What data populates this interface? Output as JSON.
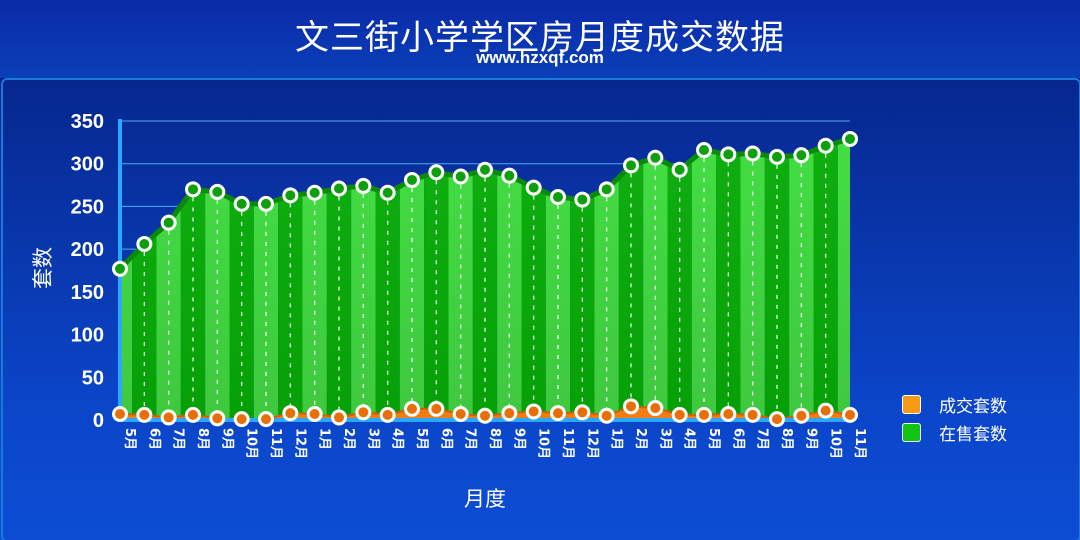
{
  "header": {
    "title": "文三街小学学区房月度成交数据",
    "subtitle": "www.hzxqf.com"
  },
  "colors": {
    "deal": "#f07d12",
    "sale": "#11cc11",
    "background": "#0b3cc4"
  },
  "chart_data": {
    "type": "area",
    "xlabel": "月度",
    "ylabel": "套数",
    "ylim": [
      0,
      350
    ],
    "yticks": [
      0,
      50,
      100,
      150,
      200,
      250,
      300,
      350
    ],
    "grid": true,
    "legend_position": "right",
    "categories": [
      "5月",
      "6月",
      "7月",
      "8月",
      "9月",
      "10月",
      "11月",
      "12月",
      "1月",
      "2月",
      "3月",
      "4月",
      "5月",
      "6月",
      "7月",
      "8月",
      "9月",
      "10月",
      "11月",
      "12月",
      "1月",
      "2月",
      "3月",
      "4月",
      "5月",
      "6月",
      "7月",
      "8月",
      "9月",
      "10月",
      "11月"
    ],
    "series": [
      {
        "name": "成交套数",
        "values": [
          7,
          6,
          3,
          6,
          2,
          1,
          1,
          8,
          7,
          3,
          9,
          6,
          13,
          13,
          7,
          5,
          8,
          10,
          8,
          9,
          5,
          16,
          14,
          6,
          6,
          7,
          6,
          1,
          5,
          11,
          6
        ]
      },
      {
        "name": "在售套数",
        "values": [
          177,
          206,
          231,
          270,
          267,
          253,
          253,
          263,
          266,
          271,
          274,
          266,
          281,
          290,
          285,
          293,
          286,
          272,
          261,
          258,
          270,
          298,
          307,
          293,
          316,
          311,
          312,
          308,
          310,
          321,
          329
        ]
      }
    ]
  }
}
